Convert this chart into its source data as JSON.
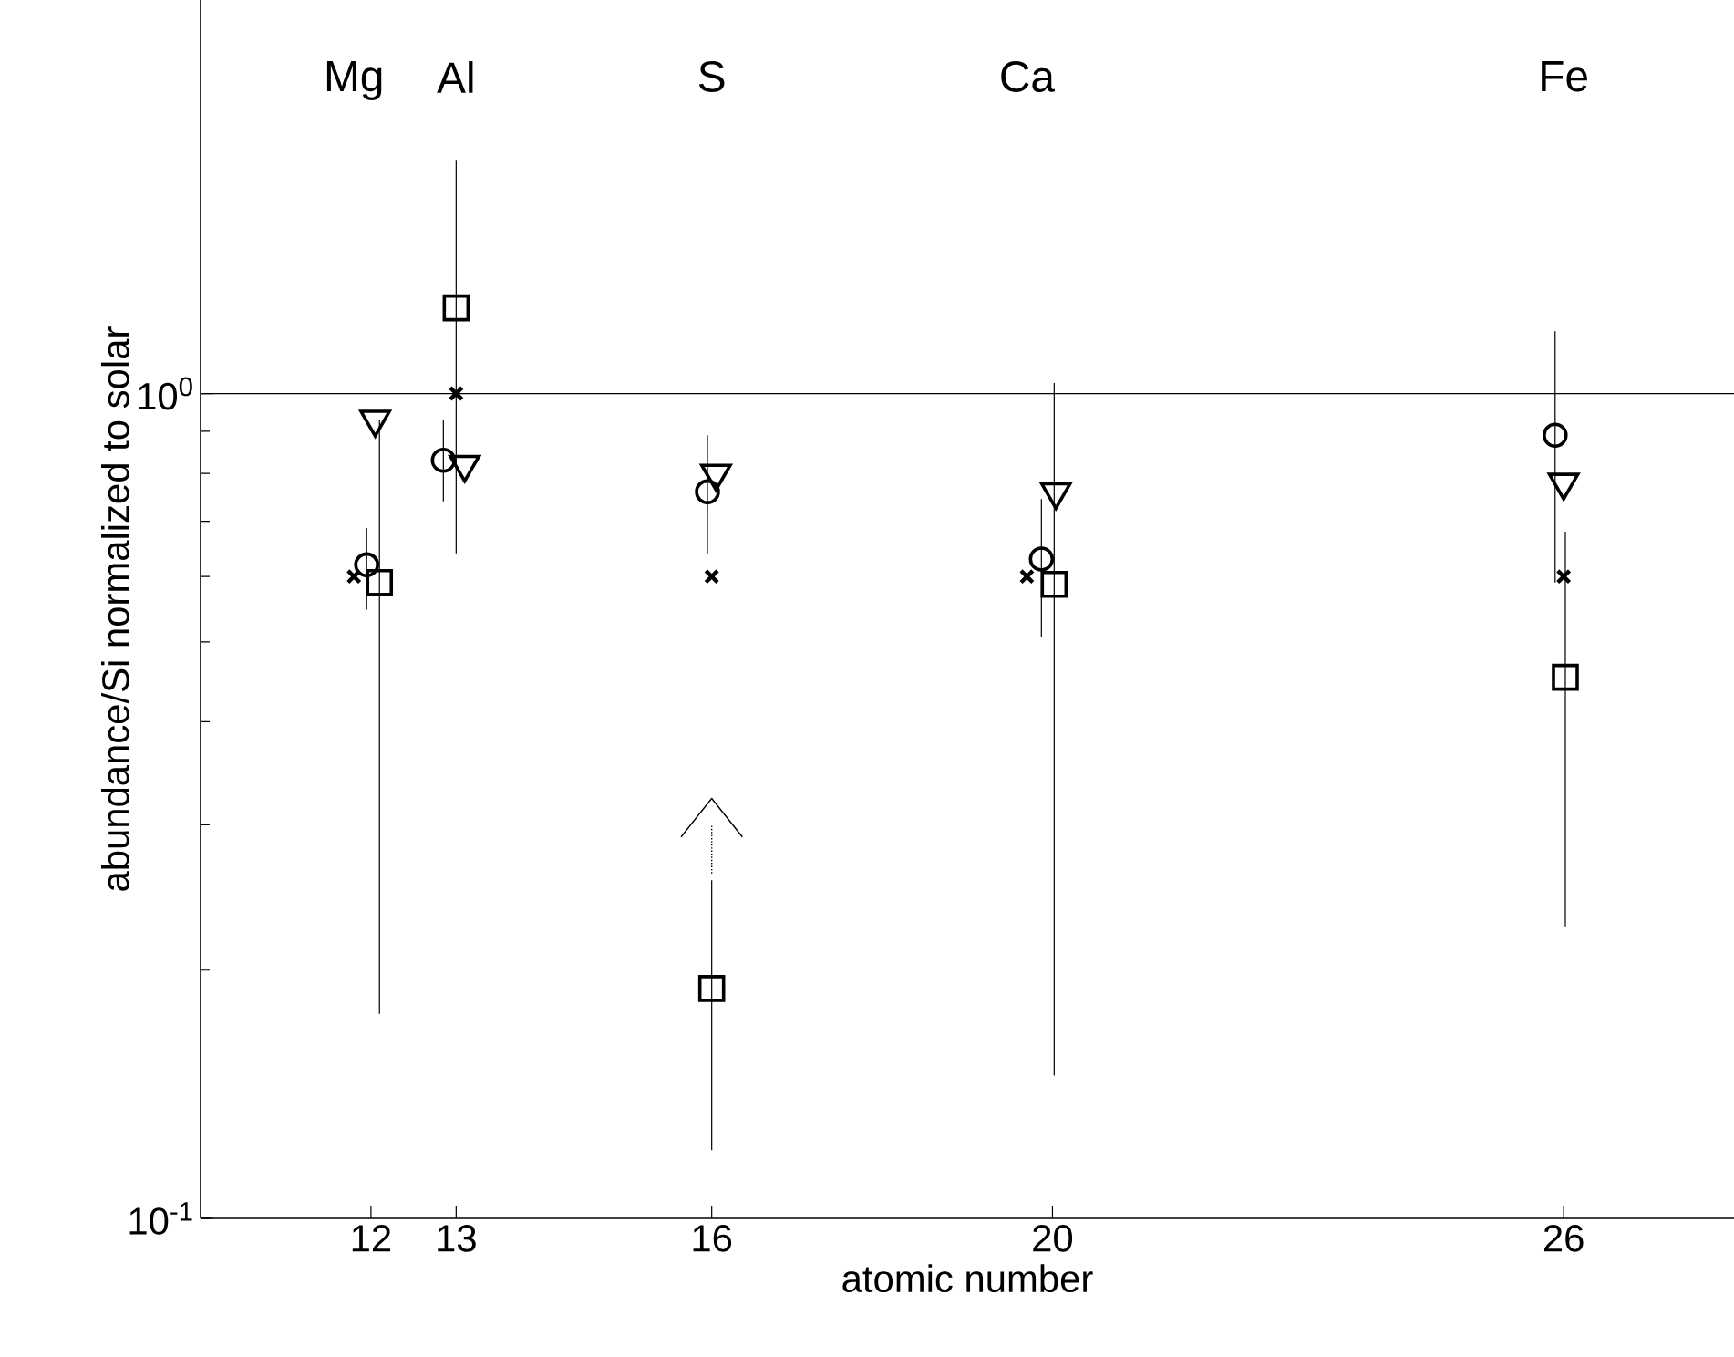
{
  "chart_data": {
    "type": "scatter",
    "xlabel": "atomic number",
    "ylabel": "abundance/Si normalized to solar",
    "xlim": [
      10,
      28
    ],
    "xticks": [
      12,
      13,
      16,
      20,
      26
    ],
    "ylim": [
      0.1,
      3
    ],
    "yticks": [
      {
        "value": 0.1,
        "label": "10$^{-1}$"
      },
      {
        "value": 1,
        "label": "10$^{0}$"
      }
    ],
    "log": "y",
    "ref_lines": [
      {
        "axis": "y",
        "value": 1,
        "color": "#000000"
      }
    ],
    "annotations": [
      "Mg",
      "Al",
      "S",
      "Ca",
      "Fe"
    ],
    "series": [
      {
        "color": "#000000",
        "marker": "cross",
        "x": [
          11.8,
          13,
          16,
          19.7,
          26
        ],
        "values": [
          0.6,
          1.0,
          0.6,
          0.6,
          0.6
        ]
      },
      {
        "color": "#000000",
        "marker": "circle",
        "x": [
          11.95,
          12.85,
          15.95,
          19.87,
          25.9
        ],
        "values": [
          0.62,
          0.83,
          0.76,
          0.63,
          0.89
        ],
        "errors": [
          [
            0.547,
            0.687
          ],
          [
            0.74,
            0.93
          ],
          [
            0.64,
            0.89
          ],
          [
            0.507,
            0.745
          ],
          [
            0.59,
            1.19
          ]
        ]
      },
      {
        "color": "#000000",
        "marker": "triangle",
        "x": [
          12.05,
          13.1,
          16.05,
          20.04,
          26.0
        ],
        "values": [
          0.93,
          0.82,
          0.8,
          0.76,
          0.78
        ]
      },
      {
        "color": "#000000",
        "marker": "square",
        "x": [
          12.1,
          13,
          16,
          20.02,
          26.02
        ],
        "values": [
          0.59,
          1.27,
          0.19,
          0.587,
          0.453
        ],
        "errors": [
          [
            0.177,
            0.93
          ],
          [
            0.64,
            1.92
          ],
          [
            0.121,
            0.257
          ],
          [
            0.149,
            1.03
          ],
          [
            0.226,
            0.68
          ]
        ]
      },
      {
        "type": "line",
        "color": "#000000",
        "marker": "none",
        "line_style": "dotted",
        "x": [
          16,
          16
        ],
        "values": [
          0.262,
          0.3
        ]
      },
      {
        "type": "line",
        "color": "#000000",
        "marker": "none",
        "line_style": "solid",
        "x": [
          15.64,
          16,
          16.36
        ],
        "values": [
          0.29,
          0.323,
          0.29
        ]
      }
    ]
  }
}
